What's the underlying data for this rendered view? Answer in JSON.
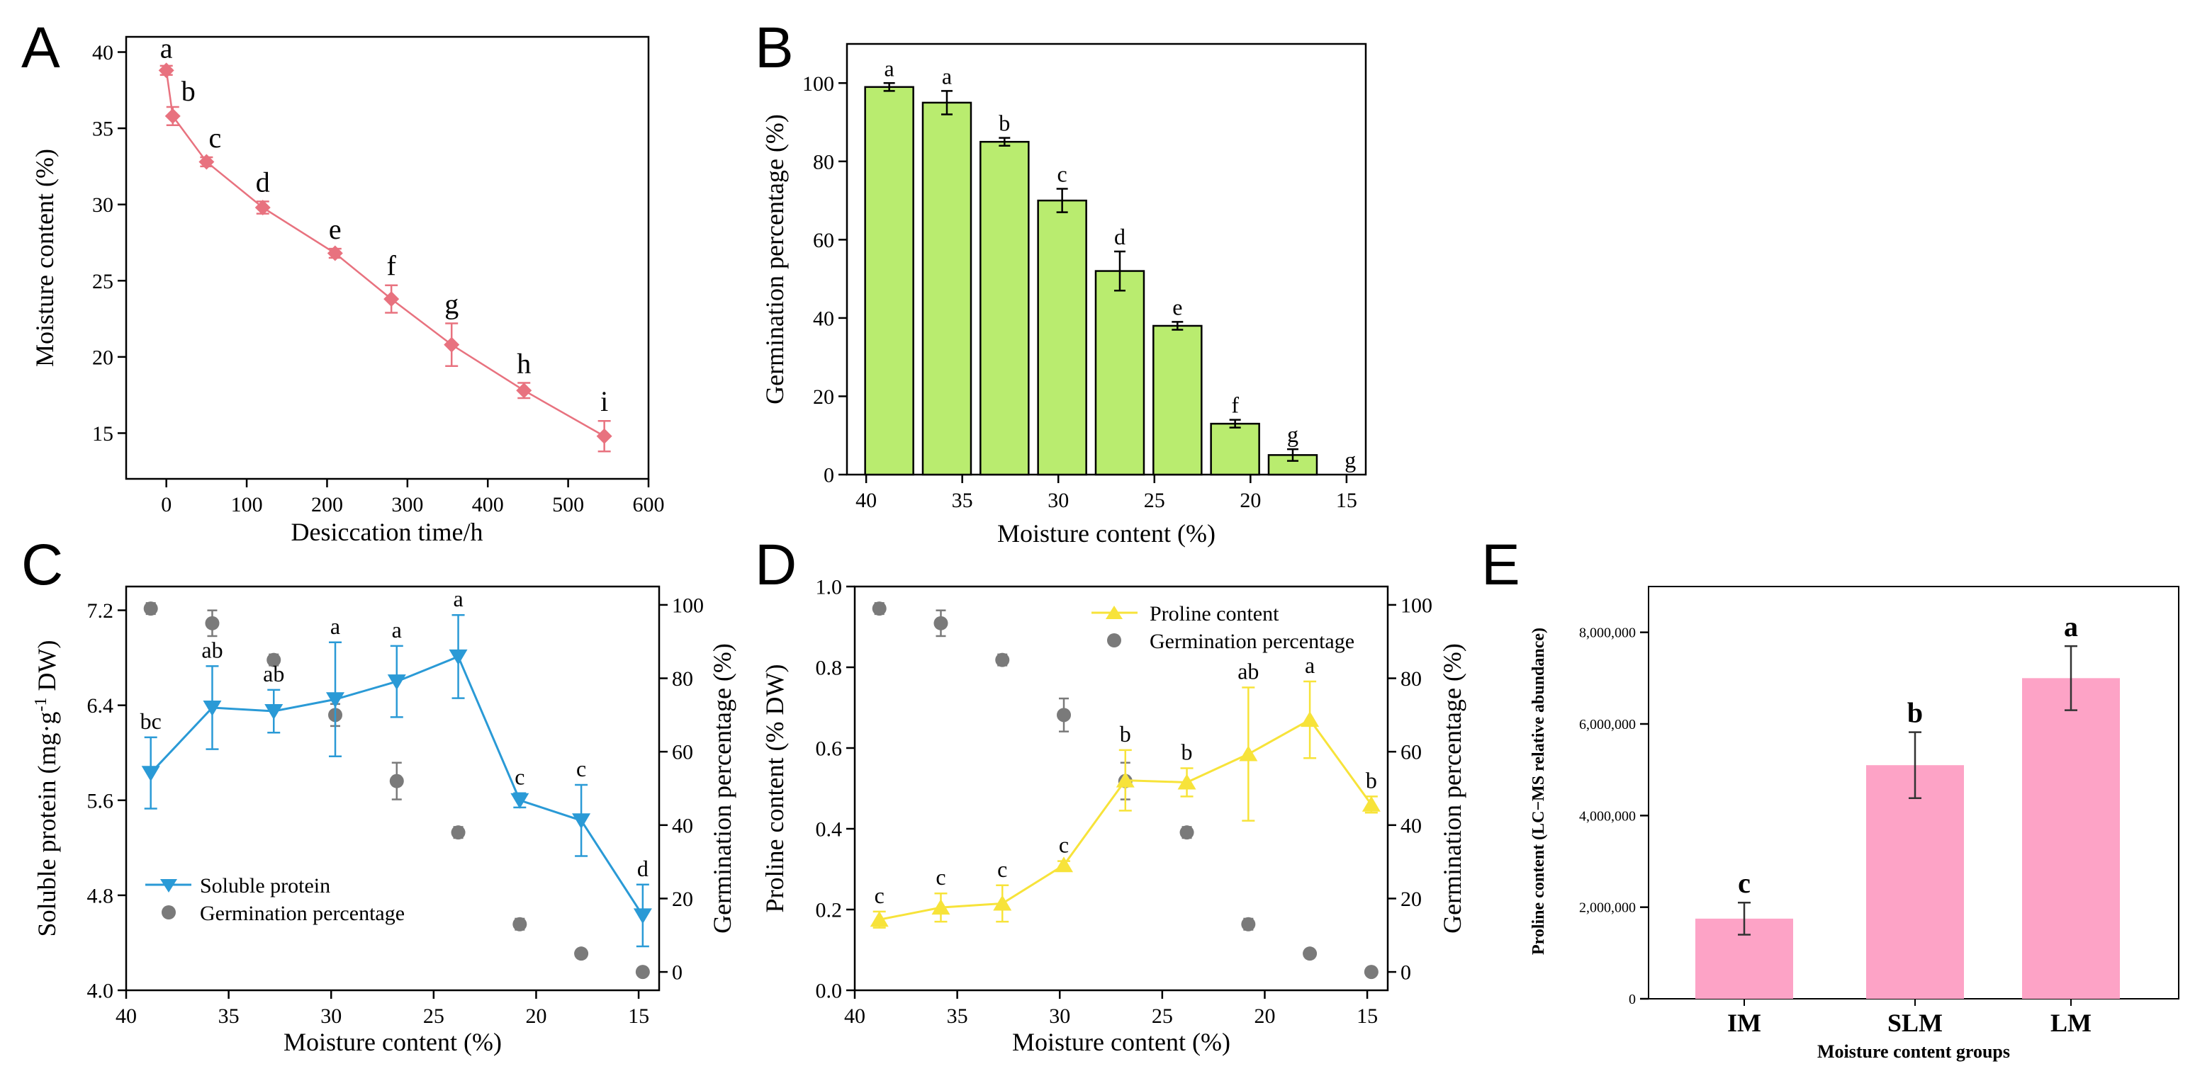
{
  "colors": {
    "a_line": "#e8727f",
    "b_bar": "#b9ec6f",
    "c_line": "#2a9ad6",
    "d_line": "#f7e33a",
    "e_bar": "#fda3c6",
    "gray": "#7a7a7a"
  },
  "chart_data": [
    {
      "id": "A",
      "panel_label": "A",
      "type": "line",
      "xlabel": "Desiccation time/h",
      "ylabel": "Moisture content (%)",
      "xlim": [
        -50,
        600
      ],
      "ylim": [
        12,
        41
      ],
      "xticks": [
        0,
        100,
        200,
        300,
        400,
        500,
        600
      ],
      "yticks": [
        15,
        20,
        25,
        30,
        35,
        40
      ],
      "x": [
        0,
        8,
        50,
        120,
        210,
        280,
        355,
        445,
        545
      ],
      "y": [
        38.8,
        35.8,
        32.8,
        29.8,
        26.8,
        23.8,
        20.8,
        17.8,
        14.8
      ],
      "err": [
        0.3,
        0.6,
        0.3,
        0.4,
        0.3,
        0.9,
        1.4,
        0.5,
        1.0
      ],
      "letters": [
        "a",
        "b",
        "c",
        "d",
        "e",
        "f",
        "g",
        "h",
        "i"
      ]
    },
    {
      "id": "B",
      "panel_label": "B",
      "type": "bar",
      "xlabel": "Moisture content (%)",
      "ylabel": "Germination percentage (%)",
      "xlim": [
        41,
        14
      ],
      "ylim": [
        0,
        110
      ],
      "xticks": [
        40,
        35,
        30,
        25,
        20,
        15
      ],
      "yticks": [
        0,
        20,
        40,
        60,
        80,
        100
      ],
      "x": [
        38.8,
        35.8,
        32.8,
        29.8,
        26.8,
        23.8,
        20.8,
        17.8,
        14.8
      ],
      "values": [
        99,
        95,
        85,
        70,
        52,
        38,
        13,
        5,
        0
      ],
      "err": [
        1,
        3,
        1,
        3,
        5,
        1,
        1,
        1.5,
        0
      ],
      "letters": [
        "a",
        "a",
        "b",
        "c",
        "d",
        "e",
        "f",
        "g",
        "g"
      ]
    },
    {
      "id": "C",
      "panel_label": "C",
      "type": "line",
      "xlabel": "Moisture content (%)",
      "ylabel": "Soluble protein (mg·g",
      "ylabel_sup": "-1",
      "ylabel_tail": " DW)",
      "y2label": "Germination percentage (%)",
      "xlim": [
        40,
        14
      ],
      "ylim": [
        4.0,
        7.4
      ],
      "y2lim": [
        -5,
        105
      ],
      "xticks": [
        40,
        35,
        30,
        25,
        20,
        15
      ],
      "yticks": [
        "4.0",
        "4.8",
        "5.6",
        "6.4",
        "7.2"
      ],
      "y2ticks": [
        0,
        20,
        40,
        60,
        80,
        100
      ],
      "x": [
        38.8,
        35.8,
        32.8,
        29.8,
        26.8,
        23.8,
        20.8,
        17.8,
        14.8
      ],
      "series": [
        {
          "name": "Soluble protein",
          "values": [
            5.83,
            6.38,
            6.35,
            6.45,
            6.6,
            6.81,
            5.6,
            5.43,
            4.63
          ],
          "err": [
            0.3,
            0.35,
            0.18,
            0.48,
            0.3,
            0.35,
            0.06,
            0.3,
            0.26
          ],
          "letters": [
            "bc",
            "ab",
            "ab",
            "a",
            "a",
            "a",
            "c",
            "c",
            "d"
          ]
        },
        {
          "name": "Germination percentage",
          "axis": "right",
          "values": [
            99,
            95,
            85,
            70,
            52,
            38,
            13,
            5,
            0
          ],
          "err": [
            1.5,
            3.5,
            1.5,
            3,
            5,
            1.5,
            1.5,
            0.5,
            0.5
          ]
        }
      ]
    },
    {
      "id": "D",
      "panel_label": "D",
      "type": "line",
      "xlabel": "Moisture content (%)",
      "ylabel": "Proline content (%  DW)",
      "y2label": "Germination percentage (%)",
      "xlim": [
        40,
        14
      ],
      "ylim": [
        0.0,
        1.0
      ],
      "y2lim": [
        -5,
        105
      ],
      "xticks": [
        40,
        35,
        30,
        25,
        20,
        15
      ],
      "yticks": [
        "0.0",
        "0.2",
        "0.4",
        "0.6",
        "0.8",
        "1.0"
      ],
      "y2ticks": [
        0,
        20,
        40,
        60,
        80,
        100
      ],
      "x": [
        38.8,
        35.8,
        32.8,
        29.8,
        26.8,
        23.8,
        20.8,
        17.8,
        14.8
      ],
      "series": [
        {
          "name": "Proline content",
          "values": [
            0.175,
            0.205,
            0.215,
            0.31,
            0.52,
            0.515,
            0.585,
            0.67,
            0.46
          ],
          "err": [
            0.02,
            0.035,
            0.045,
            0.01,
            0.075,
            0.035,
            0.165,
            0.095,
            0.02
          ],
          "letters": [
            "c",
            "c",
            "c",
            "c",
            "b",
            "b",
            "ab",
            "a",
            "b"
          ]
        },
        {
          "name": "Germination percentage",
          "axis": "right",
          "values": [
            99,
            95,
            85,
            70,
            52,
            38,
            13,
            5,
            0
          ],
          "err": [
            1.5,
            3.5,
            1.5,
            4.5,
            5,
            1.5,
            1.5,
            0.5,
            0.5
          ]
        }
      ]
    },
    {
      "id": "E",
      "panel_label": "E",
      "type": "bar",
      "xlabel": "Moisture  content  groups",
      "ylabel": "Proline  content (LC−MS relative abundance)",
      "categories": [
        "IM",
        "SLM",
        "LM"
      ],
      "values": [
        1750000,
        5100000,
        7000000
      ],
      "err": [
        350000,
        720000,
        700000
      ],
      "letters": [
        "c",
        "b",
        "a"
      ],
      "ylim": [
        0,
        9000000
      ],
      "yticks": [
        0,
        2000000,
        4000000,
        6000000,
        8000000
      ],
      "ytick_labels": [
        "0",
        "2,000,000",
        "4,000,000",
        "6,000,000",
        "8,000,000"
      ]
    }
  ]
}
